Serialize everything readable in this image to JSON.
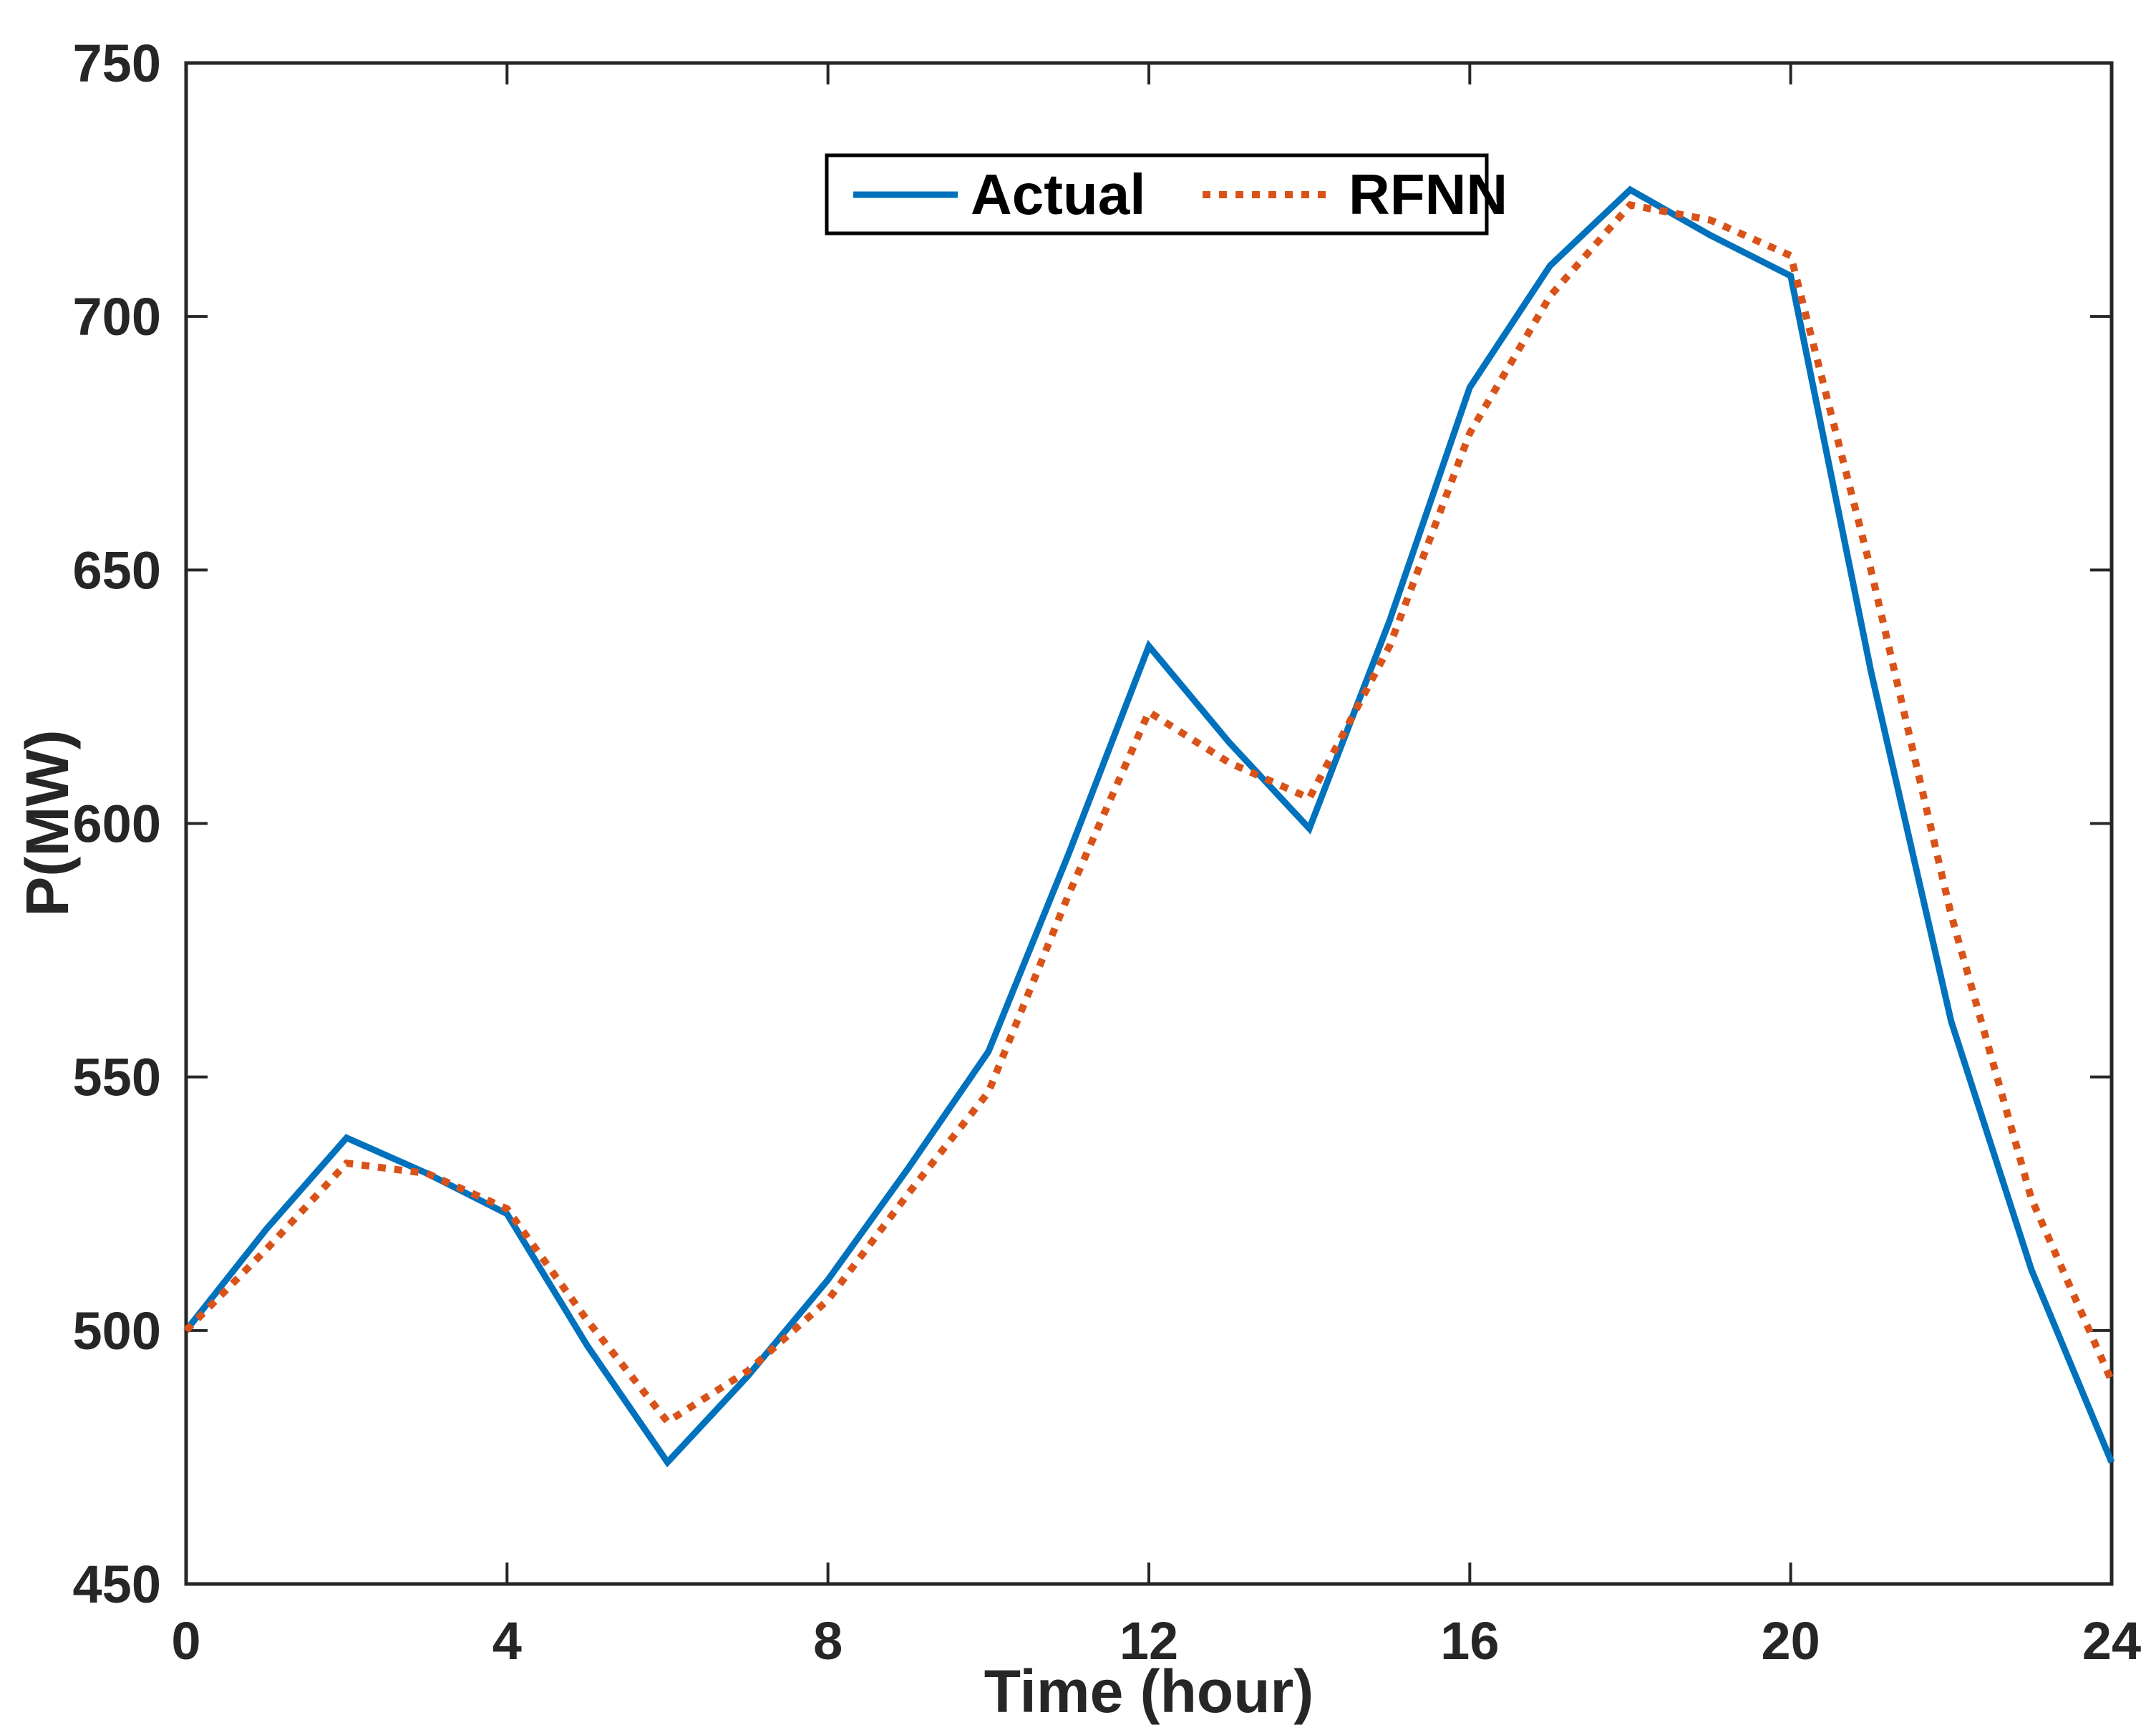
{
  "figure": {
    "background": "#ffffff",
    "axis_color": "#262626"
  },
  "axes": {
    "xlabel": "Time (hour)",
    "ylabel": "P(MW)",
    "x_tick_labels": [
      "0",
      "4",
      "8",
      "12",
      "16",
      "20",
      "24"
    ],
    "y_tick_labels": [
      "450",
      "500",
      "550",
      "600",
      "650",
      "700",
      "750"
    ]
  },
  "legend": {
    "position": "top-center",
    "items": [
      {
        "label": "Actual",
        "style": "solid",
        "color": "#0072BD"
      },
      {
        "label": "RFNN",
        "style": "dotted",
        "color": "#D95319"
      }
    ]
  },
  "chart_data": {
    "type": "line",
    "title": "",
    "xlabel": "Time (hour)",
    "ylabel": "P(MW)",
    "xlim": [
      0,
      24
    ],
    "ylim": [
      450,
      750
    ],
    "x_ticks": [
      0,
      4,
      8,
      12,
      16,
      20,
      24
    ],
    "y_ticks": [
      450,
      500,
      550,
      600,
      650,
      700,
      750
    ],
    "grid": false,
    "legend_position": "top-center",
    "x": [
      0,
      1,
      2,
      3,
      4,
      5,
      6,
      7,
      8,
      9,
      10,
      11,
      12,
      13,
      14,
      15,
      16,
      17,
      18,
      19,
      20,
      21,
      22,
      23,
      24
    ],
    "series": [
      {
        "name": "Actual",
        "color": "#0072BD",
        "line_style": "solid",
        "values": [
          500,
          520,
          538,
          531,
          523,
          497,
          474,
          491,
          510,
          532,
          555,
          594,
          635,
          616,
          599,
          640,
          686,
          710,
          725,
          716,
          708,
          630,
          561,
          512,
          474
        ]
      },
      {
        "name": "RFNN",
        "color": "#D95319",
        "line_style": "dotted",
        "values": [
          500,
          516,
          533,
          531,
          524,
          502,
          482,
          492,
          506,
          527,
          547,
          586,
          622,
          612,
          605,
          635,
          677,
          704,
          722,
          719,
          712,
          650,
          582,
          526,
          490
        ]
      }
    ]
  }
}
